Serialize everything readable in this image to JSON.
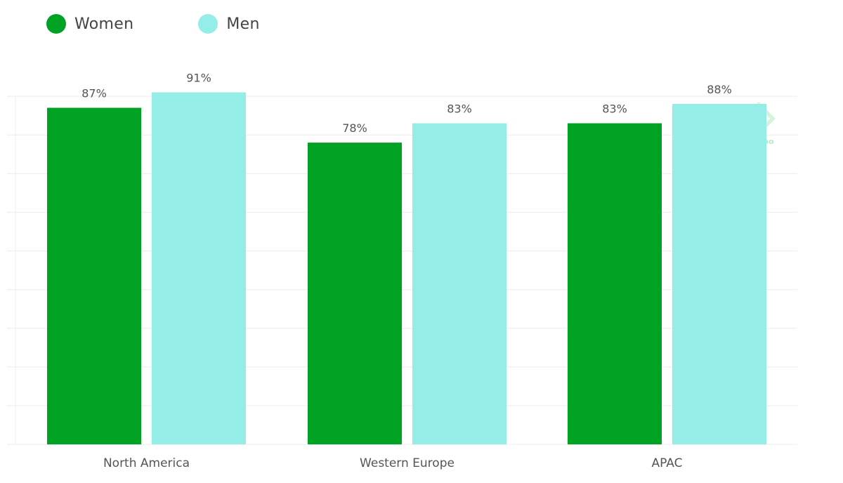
{
  "legend": [
    {
      "label": "Women",
      "color": "#00a223"
    },
    {
      "label": "Men",
      "color": "#94ede6"
    }
  ],
  "watermark": {
    "text": "newzoo"
  },
  "chart_data": {
    "type": "bar",
    "categories": [
      "North America",
      "Western Europe",
      "APAC"
    ],
    "series": [
      {
        "name": "Women",
        "values": [
          87,
          78,
          83
        ],
        "labels": [
          "87%",
          "78%",
          "83%"
        ],
        "color": "#00a223"
      },
      {
        "name": "Men",
        "values": [
          91,
          83,
          88
        ],
        "labels": [
          "91%",
          "83%",
          "88%"
        ],
        "color": "#94ede6"
      }
    ],
    "ylim": [
      0,
      90
    ],
    "grid": true,
    "legend_position": "top-left",
    "title": "",
    "xlabel": "",
    "ylabel": ""
  }
}
